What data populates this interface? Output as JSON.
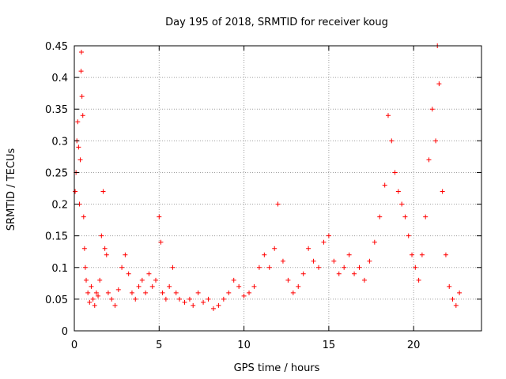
{
  "chart_data": {
    "type": "scatter",
    "title": "Day 195 of 2018, SRMTID for receiver koug",
    "xlabel": "GPS time / hours",
    "ylabel": "SRMTID / TECUs",
    "xlim": [
      0,
      24
    ],
    "ylim": [
      0,
      0.45
    ],
    "xticks": [
      0,
      5,
      10,
      15,
      20
    ],
    "yticks": [
      0,
      0.05,
      0.1,
      0.15,
      0.2,
      0.25,
      0.3,
      0.35,
      0.4,
      0.45
    ],
    "grid": true,
    "marker": "+",
    "color": "#ff0000",
    "series": [
      {
        "name": "SRMTID",
        "points": [
          [
            0.05,
            0.22
          ],
          [
            0.1,
            0.25
          ],
          [
            0.15,
            0.3
          ],
          [
            0.2,
            0.33
          ],
          [
            0.25,
            0.29
          ],
          [
            0.3,
            0.2
          ],
          [
            0.35,
            0.27
          ],
          [
            0.4,
            0.41
          ],
          [
            0.42,
            0.44
          ],
          [
            0.45,
            0.37
          ],
          [
            0.5,
            0.34
          ],
          [
            0.55,
            0.18
          ],
          [
            0.6,
            0.13
          ],
          [
            0.65,
            0.1
          ],
          [
            0.7,
            0.08
          ],
          [
            0.8,
            0.06
          ],
          [
            0.9,
            0.045
          ],
          [
            1.0,
            0.07
          ],
          [
            1.1,
            0.05
          ],
          [
            1.2,
            0.04
          ],
          [
            1.3,
            0.06
          ],
          [
            1.4,
            0.055
          ],
          [
            1.5,
            0.08
          ],
          [
            1.6,
            0.15
          ],
          [
            1.7,
            0.22
          ],
          [
            1.8,
            0.13
          ],
          [
            1.9,
            0.12
          ],
          [
            2.0,
            0.06
          ],
          [
            2.2,
            0.05
          ],
          [
            2.4,
            0.04
          ],
          [
            2.6,
            0.065
          ],
          [
            2.8,
            0.1
          ],
          [
            3.0,
            0.12
          ],
          [
            3.2,
            0.09
          ],
          [
            3.4,
            0.06
          ],
          [
            3.6,
            0.05
          ],
          [
            3.8,
            0.07
          ],
          [
            4.0,
            0.08
          ],
          [
            4.2,
            0.06
          ],
          [
            4.4,
            0.09
          ],
          [
            4.6,
            0.07
          ],
          [
            4.8,
            0.08
          ],
          [
            5.0,
            0.18
          ],
          [
            5.1,
            0.14
          ],
          [
            5.2,
            0.06
          ],
          [
            5.4,
            0.05
          ],
          [
            5.6,
            0.07
          ],
          [
            5.8,
            0.1
          ],
          [
            6.0,
            0.06
          ],
          [
            6.2,
            0.05
          ],
          [
            6.5,
            0.045
          ],
          [
            6.8,
            0.05
          ],
          [
            7.0,
            0.04
          ],
          [
            7.3,
            0.06
          ],
          [
            7.6,
            0.045
          ],
          [
            7.9,
            0.05
          ],
          [
            8.2,
            0.035
          ],
          [
            8.5,
            0.04
          ],
          [
            8.8,
            0.05
          ],
          [
            9.1,
            0.06
          ],
          [
            9.4,
            0.08
          ],
          [
            9.7,
            0.07
          ],
          [
            10.0,
            0.055
          ],
          [
            10.3,
            0.06
          ],
          [
            10.6,
            0.07
          ],
          [
            10.9,
            0.1
          ],
          [
            11.2,
            0.12
          ],
          [
            11.5,
            0.1
          ],
          [
            11.8,
            0.13
          ],
          [
            12.0,
            0.2
          ],
          [
            12.3,
            0.11
          ],
          [
            12.6,
            0.08
          ],
          [
            12.9,
            0.06
          ],
          [
            13.2,
            0.07
          ],
          [
            13.5,
            0.09
          ],
          [
            13.8,
            0.13
          ],
          [
            14.1,
            0.11
          ],
          [
            14.4,
            0.1
          ],
          [
            14.7,
            0.14
          ],
          [
            15.0,
            0.15
          ],
          [
            15.3,
            0.11
          ],
          [
            15.6,
            0.09
          ],
          [
            15.9,
            0.1
          ],
          [
            16.2,
            0.12
          ],
          [
            16.5,
            0.09
          ],
          [
            16.8,
            0.1
          ],
          [
            17.1,
            0.08
          ],
          [
            17.4,
            0.11
          ],
          [
            17.7,
            0.14
          ],
          [
            18.0,
            0.18
          ],
          [
            18.3,
            0.23
          ],
          [
            18.5,
            0.34
          ],
          [
            18.7,
            0.3
          ],
          [
            18.9,
            0.25
          ],
          [
            19.1,
            0.22
          ],
          [
            19.3,
            0.2
          ],
          [
            19.5,
            0.18
          ],
          [
            19.7,
            0.15
          ],
          [
            19.9,
            0.12
          ],
          [
            20.1,
            0.1
          ],
          [
            20.3,
            0.08
          ],
          [
            20.5,
            0.12
          ],
          [
            20.7,
            0.18
          ],
          [
            20.9,
            0.27
          ],
          [
            21.1,
            0.35
          ],
          [
            21.3,
            0.3
          ],
          [
            21.4,
            0.45
          ],
          [
            21.5,
            0.39
          ],
          [
            21.7,
            0.22
          ],
          [
            21.9,
            0.12
          ],
          [
            22.1,
            0.07
          ],
          [
            22.3,
            0.05
          ],
          [
            22.5,
            0.04
          ],
          [
            22.7,
            0.06
          ]
        ]
      }
    ]
  }
}
